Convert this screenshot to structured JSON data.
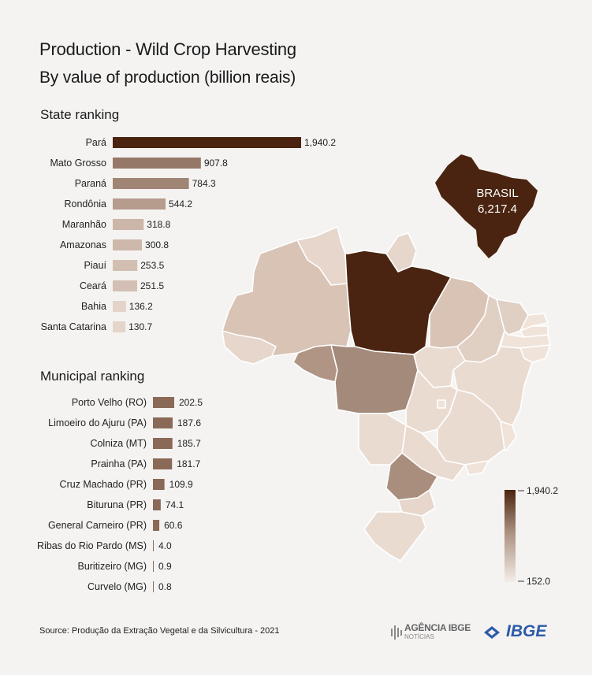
{
  "header": {
    "title": "Production - Wild Crop Harvesting",
    "subtitle": "By value of production (billion reais)"
  },
  "state_section_label": "State ranking",
  "municipal_section_label": "Municipal ranking",
  "map": {
    "brasil_label": "BRASIL",
    "brasil_value": "6,217.4",
    "legend_max": "1,940.2",
    "legend_min": "152.0"
  },
  "colors": {
    "dark": "#4a2410",
    "mid": "#a98e7e",
    "light": "#e6d6cb",
    "muni_bar": "#8a6a57",
    "background": "#f4f3f2"
  },
  "chart_data": [
    {
      "type": "bar",
      "orientation": "horizontal",
      "title": "State ranking",
      "categories": [
        "Pará",
        "Mato Grosso",
        "Paraná",
        "Rondônia",
        "Maranhão",
        "Amazonas",
        "Piauí",
        "Ceará",
        "Bahia",
        "Santa Catarina"
      ],
      "values": [
        1940.2,
        907.8,
        784.3,
        544.2,
        318.8,
        300.8,
        253.5,
        251.5,
        136.2,
        130.7
      ],
      "value_labels": [
        "1,940.2",
        "907.8",
        "784.3",
        "544.2",
        "318.8",
        "300.8",
        "253.5",
        "251.5",
        "136.2",
        "130.7"
      ]
    },
    {
      "type": "bar",
      "orientation": "horizontal",
      "title": "Municipal ranking",
      "categories": [
        "Porto Velho (RO)",
        "Limoeiro do Ajuru (PA)",
        "Colniza (MT)",
        "Prainha (PA)",
        "Cruz Machado (PR)",
        "Bituruna (PR)",
        "General Carneiro (PR)",
        "Ribas do Rio Pardo (MS)",
        "Buritizeiro (MG)",
        "Curvelo (MG)"
      ],
      "values": [
        202.5,
        187.6,
        185.7,
        181.7,
        109.9,
        74.1,
        60.6,
        4.0,
        0.9,
        0.8
      ],
      "value_labels": [
        "202.5",
        "187.6",
        "185.7",
        "181.7",
        "109.9",
        "74.1",
        "60.6",
        "4.0",
        "0.9",
        "0.8"
      ]
    }
  ],
  "footer": {
    "source": "Source: Produção da Extração Vegetal e da Silvicultura - 2021",
    "agencia_logo": "AGÊNCIA IBGE",
    "agencia_sub": "NOTÍCIAS",
    "ibge_logo": "IBGE"
  }
}
